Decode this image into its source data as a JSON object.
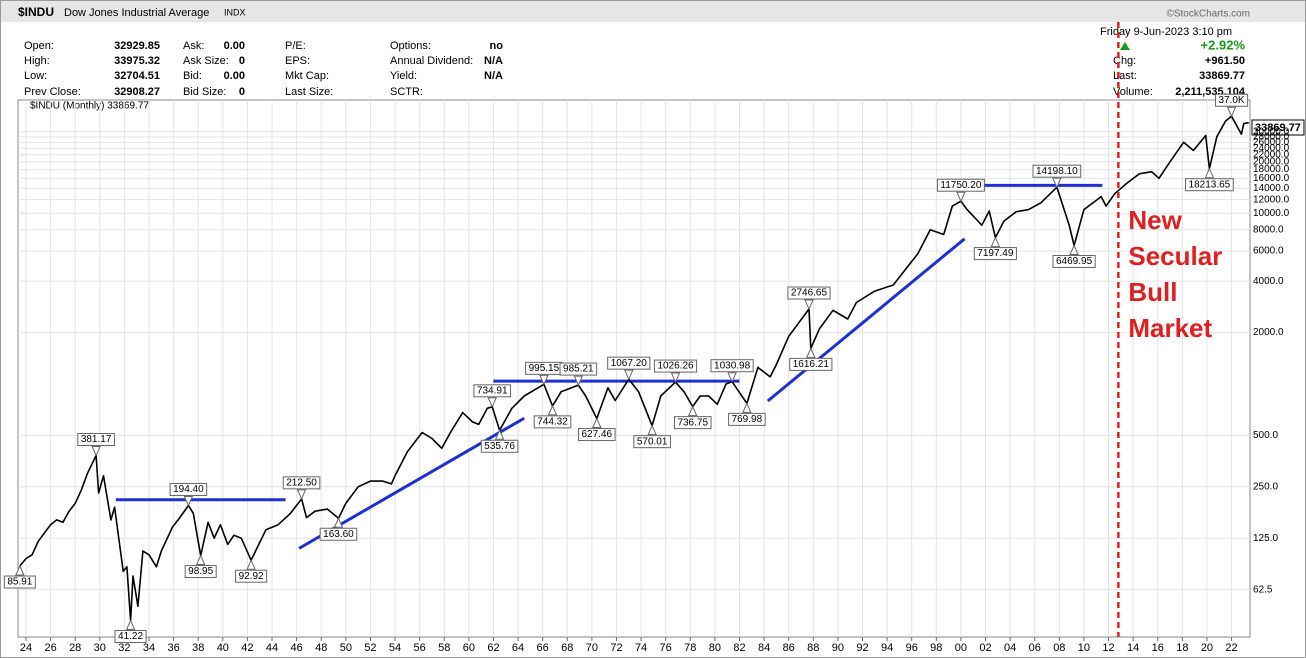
{
  "header": {
    "symbol": "$INDU",
    "name": "Dow Jones Industrial Average",
    "exchange": "INDX",
    "source": "©StockCharts.com",
    "quote_columns": [
      [
        [
          "Open:",
          "32929.85"
        ],
        [
          "High:",
          "33975.32"
        ],
        [
          "Low:",
          "32704.51"
        ],
        [
          "Prev Close:",
          "32908.27"
        ]
      ],
      [
        [
          "Ask:",
          "0.00"
        ],
        [
          "Ask Size:",
          "0"
        ],
        [
          "Bid:",
          "0.00"
        ],
        [
          "Bid Size:",
          "0"
        ]
      ],
      [
        [
          "P/E:"
        ],
        [
          "EPS:"
        ],
        [
          "Mkt Cap:"
        ],
        [
          "Last Size:"
        ]
      ],
      [
        [
          "Options:",
          "no"
        ],
        [
          "Annual Dividend:",
          "N/A"
        ],
        [
          "Yield:",
          "N/A"
        ],
        [
          "SCTR:"
        ]
      ]
    ],
    "date": "Friday 9-Jun-2023 3:10 pm",
    "change_pct": "+2.92%",
    "right_rows": [
      [
        "Chg:",
        "+961.50"
      ],
      [
        "Last:",
        "33869.77"
      ],
      [
        "Volume:",
        "2,211,535,104"
      ]
    ],
    "legend": "$INDU (Monthly) 33869.77",
    "last_tag": "33869.77"
  },
  "chart_data": {
    "type": "line",
    "log_scale": true,
    "grid": true,
    "color": "#000000",
    "x": [
      1923.5,
      1924,
      1924.5,
      1925,
      1926,
      1926.5,
      1927,
      1927.5,
      1928,
      1928.5,
      1929,
      1929.7,
      1929.9,
      1930.3,
      1930.9,
      1931.2,
      1931.9,
      1932.2,
      1932.5,
      1932.7,
      1933.1,
      1933.5,
      1934,
      1934.6,
      1935,
      1935.9,
      1936.5,
      1937.2,
      1937.6,
      1938.2,
      1938.8,
      1939.3,
      1939.8,
      1940.4,
      1940.9,
      1941.5,
      1942.3,
      1943.5,
      1944.5,
      1945.5,
      1946.4,
      1946.8,
      1947.5,
      1948.5,
      1949.4,
      1950,
      1951,
      1952,
      1953,
      1953.7,
      1954,
      1955,
      1956.2,
      1957,
      1957.8,
      1958.5,
      1959.5,
      1960.3,
      1960.8,
      1961.5,
      1961.9,
      1962.5,
      1963.5,
      1964.5,
      1966.1,
      1966.8,
      1967.5,
      1968.9,
      1969.5,
      1970.4,
      1971.3,
      1971.9,
      1973,
      1973.8,
      1974.9,
      1975.6,
      1976.8,
      1977.5,
      1978.2,
      1978.8,
      1979.5,
      1980.2,
      1980.9,
      1981.4,
      1982.6,
      1983.5,
      1984.5,
      1985,
      1986,
      1987.65,
      1987.8,
      1988.5,
      1989.6,
      1990.8,
      1991.5,
      1993,
      1994.5,
      1995.5,
      1996.5,
      1997.5,
      1998.6,
      1999.3,
      2000,
      2000.5,
      2001.7,
      2002.3,
      2002.8,
      2003.5,
      2004.5,
      2005.5,
      2006.5,
      2007.8,
      2008.8,
      2009.2,
      2010,
      2011.4,
      2011.8,
      2012.5,
      2013.5,
      2014.5,
      2015.5,
      2016.1,
      2017,
      2018.1,
      2018.9,
      2019.9,
      2020.2,
      2020.8,
      2021.5,
      2022,
      2022.8,
      2023,
      2023.4
    ],
    "values": [
      85.91,
      95,
      100,
      120,
      150,
      160,
      155,
      180,
      200,
      240,
      300,
      381.17,
      230,
      290,
      160,
      190,
      80,
      85,
      41.22,
      75,
      50,
      105,
      100,
      85,
      105,
      145,
      165,
      194.4,
      175,
      98.95,
      155,
      125,
      150,
      115,
      130,
      125,
      92.92,
      140,
      150,
      175,
      212.5,
      165,
      180,
      185,
      163.6,
      200,
      250,
      270,
      270,
      260,
      290,
      400,
      520,
      480,
      420,
      520,
      680,
      600,
      580,
      720,
      734.91,
      535.76,
      720,
      850,
      995.15,
      744.32,
      900,
      985.21,
      850,
      627.46,
      950,
      800,
      1067.2,
      900,
      570.01,
      850,
      1026.26,
      900,
      736.75,
      850,
      850,
      760,
      1000,
      1030.98,
      769.98,
      1250,
      1100,
      1300,
      1900,
      2746.65,
      1616.21,
      2100,
      2700,
      2400,
      3000,
      3500,
      3800,
      4700,
      5800,
      8000,
      7500,
      11000,
      11750.2,
      10500,
      8500,
      10300,
      7197.49,
      9000,
      10200,
      10500,
      11500,
      14198.1,
      8500,
      6469.95,
      10500,
      12500,
      11000,
      13000,
      15000,
      17000,
      17500,
      16000,
      20000,
      26000,
      23300,
      28500,
      18213.65,
      28000,
      34500,
      36952,
      29000,
      33500,
      33869.77
    ],
    "xlim": [
      1923.35,
      2023.5
    ],
    "ylim": [
      33,
      46000
    ],
    "xticks": [
      {
        "value": 1924,
        "label": "24"
      },
      {
        "value": 1926,
        "label": "26"
      },
      {
        "value": 1928,
        "label": "28"
      },
      {
        "value": 1930,
        "label": "30"
      },
      {
        "value": 1932,
        "label": "32"
      },
      {
        "value": 1934,
        "label": "34"
      },
      {
        "value": 1936,
        "label": "36"
      },
      {
        "value": 1938,
        "label": "38"
      },
      {
        "value": 1940,
        "label": "40"
      },
      {
        "value": 1942,
        "label": "42"
      },
      {
        "value": 1944,
        "label": "44"
      },
      {
        "value": 1946,
        "label": "46"
      },
      {
        "value": 1948,
        "label": "48"
      },
      {
        "value": 1950,
        "label": "50"
      },
      {
        "value": 1952,
        "label": "52"
      },
      {
        "value": 1954,
        "label": "54"
      },
      {
        "value": 1956,
        "label": "56"
      },
      {
        "value": 1958,
        "label": "58"
      },
      {
        "value": 1960,
        "label": "60"
      },
      {
        "value": 1962,
        "label": "62"
      },
      {
        "value": 1964,
        "label": "64"
      },
      {
        "value": 1966,
        "label": "66"
      },
      {
        "value": 1968,
        "label": "68"
      },
      {
        "value": 1970,
        "label": "70"
      },
      {
        "value": 1972,
        "label": "72"
      },
      {
        "value": 1974,
        "label": "74"
      },
      {
        "value": 1976,
        "label": "76"
      },
      {
        "value": 1978,
        "label": "78"
      },
      {
        "value": 1980,
        "label": "80"
      },
      {
        "value": 1982,
        "label": "82"
      },
      {
        "value": 1984,
        "label": "84"
      },
      {
        "value": 1986,
        "label": "86"
      },
      {
        "value": 1988,
        "label": "88"
      },
      {
        "value": 1990,
        "label": "90"
      },
      {
        "value": 1992,
        "label": "92"
      },
      {
        "value": 1994,
        "label": "94"
      },
      {
        "value": 1996,
        "label": "96"
      },
      {
        "value": 1998,
        "label": "98"
      },
      {
        "value": 2000,
        "label": "00"
      },
      {
        "value": 2002,
        "label": "02"
      },
      {
        "value": 2004,
        "label": "04"
      },
      {
        "value": 2006,
        "label": "06"
      },
      {
        "value": 2008,
        "label": "08"
      },
      {
        "value": 2010,
        "label": "10"
      },
      {
        "value": 2012,
        "label": "12"
      },
      {
        "value": 2014,
        "label": "14"
      },
      {
        "value": 2016,
        "label": "16"
      },
      {
        "value": 2018,
        "label": "18"
      },
      {
        "value": 2020,
        "label": "20"
      },
      {
        "value": 2022,
        "label": "22"
      }
    ],
    "yticks": [
      62.5,
      {
        "value": 125,
        "label": "125.0"
      },
      {
        "value": 250,
        "label": "250.0"
      },
      {
        "value": 500,
        "label": "500.0"
      },
      {
        "value": 2000,
        "label": "2000.0"
      },
      {
        "value": 4000,
        "label": "4000.0"
      },
      {
        "value": 6000,
        "label": "6000.0"
      },
      {
        "value": 8000,
        "label": "8000.0"
      },
      {
        "value": 10000,
        "label": "10000.0"
      },
      {
        "value": 12000,
        "label": "12000.0"
      },
      {
        "value": 14000,
        "label": "14000.0"
      },
      {
        "value": 16000,
        "label": "16000.0"
      },
      {
        "value": 18000,
        "label": "18000.0"
      },
      {
        "value": 20000,
        "label": "20000.0"
      },
      {
        "value": 22000,
        "label": "22000.0"
      },
      {
        "value": 24000,
        "label": "24000.0"
      },
      {
        "value": 26000,
        "label": "26000.0"
      },
      {
        "value": 28000,
        "label": "28000.0"
      },
      {
        "value": 30000,
        "label": "30000.0"
      }
    ],
    "peaks": [
      {
        "x": 1929.7,
        "value": 381.17,
        "label": "381.17"
      },
      {
        "x": 1937.2,
        "value": 194.4,
        "label": "194.40"
      },
      {
        "x": 1946.4,
        "value": 212.5,
        "label": "212.50"
      },
      {
        "x": 1961.9,
        "value": 734.91,
        "label": "734.91"
      },
      {
        "x": 1966.1,
        "value": 995.15,
        "label": "995.15"
      },
      {
        "x": 1968.9,
        "value": 985.21,
        "label": "985.21"
      },
      {
        "x": 1973,
        "value": 1067.2,
        "label": "1067.20"
      },
      {
        "x": 1976.8,
        "value": 1026.26,
        "label": "1026.26"
      },
      {
        "x": 1981.4,
        "value": 1030.98,
        "label": "1030.98"
      },
      {
        "x": 1987.65,
        "value": 2746.65,
        "label": "2746.65"
      },
      {
        "x": 2000,
        "value": 11750.2,
        "label": "11750.20"
      },
      {
        "x": 2007.8,
        "value": 14198.1,
        "label": "14198.10"
      },
      {
        "x": 2022,
        "value": 36952,
        "label": "37.0K"
      }
    ],
    "troughs": [
      {
        "x": 1923.5,
        "value": 85.91,
        "label": "85.91"
      },
      {
        "x": 1932.5,
        "value": 41.22,
        "label": "41.22"
      },
      {
        "x": 1938.2,
        "value": 98.95,
        "label": "98.95"
      },
      {
        "x": 1942.3,
        "value": 92.92,
        "label": "92.92"
      },
      {
        "x": 1949.4,
        "value": 163.6,
        "label": "163.60"
      },
      {
        "x": 1962.5,
        "value": 535.76,
        "label": "535.76"
      },
      {
        "x": 1966.8,
        "value": 744.32,
        "label": "744.32"
      },
      {
        "x": 1970.4,
        "value": 627.46,
        "label": "627.46"
      },
      {
        "x": 1974.9,
        "value": 570.01,
        "label": "570.01"
      },
      {
        "x": 1978.2,
        "value": 736.75,
        "label": "736.75"
      },
      {
        "x": 1982.6,
        "value": 769.98,
        "label": "769.98"
      },
      {
        "x": 1987.8,
        "value": 1616.21,
        "label": "1616.21"
      },
      {
        "x": 2002.8,
        "value": 7197.49,
        "label": "7197.49"
      },
      {
        "x": 2009.2,
        "value": 6469.95,
        "label": "6469.95"
      },
      {
        "x": 2020.2,
        "value": 18213.65,
        "label": "18213.65"
      }
    ],
    "trend_lines": [
      {
        "x": [
          1931.3,
          1945.1
        ],
        "y": [
          210,
          210
        ]
      },
      {
        "x": [
          1946.2,
          1964.5
        ],
        "y": [
          109,
          630
        ]
      },
      {
        "x": [
          1962,
          1982
        ],
        "y": [
          1040,
          1040
        ]
      },
      {
        "x": [
          1984.3,
          2000.3
        ],
        "y": [
          795,
          7080
        ]
      },
      {
        "x": [
          1998.4,
          2011.5
        ],
        "y": [
          14550,
          14550
        ]
      }
    ],
    "trend_color": "#1f2fd6",
    "marker_line": {
      "x": 2012.8,
      "color": "#e02020"
    },
    "annotation": [
      "New",
      "Secular",
      "Bull",
      "Market"
    ]
  }
}
